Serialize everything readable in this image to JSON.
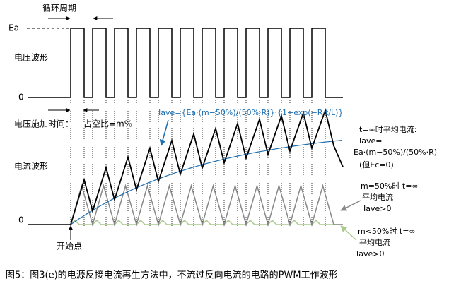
{
  "diagram": {
    "cycle_label": "循环周期",
    "voltage": {
      "high_label": "Ea",
      "zero_label": "0",
      "title": "电压波形"
    },
    "on_time_label": "电压施加时间：",
    "duty_label": "占空比=m%",
    "formula": "Iave={Ea·(m−50%)/(50%·R)}·{1−exp(−R·t/L)}",
    "current": {
      "title": "电流波形",
      "zero_label": "0"
    },
    "steady_note": {
      "line1": "t=∞时平均电流:",
      "line2": "Iave=",
      "line3": "Ea·(m−50%)/(50%·R)",
      "line4": "(但Ec=0)"
    },
    "m50_note": {
      "line1": "m=50%时 t=∞",
      "line2": "平均电流",
      "line3": "Iave>0"
    },
    "mlt50_note": {
      "line1": "m<50%时 t=∞",
      "line2": "平均电流",
      "line3": "Iave>0"
    },
    "start_label": "开始点",
    "caption": "图5：图3(e)的电源反接电流再生方法中，不流过反向电流的电路的PWM工作波形"
  }
}
